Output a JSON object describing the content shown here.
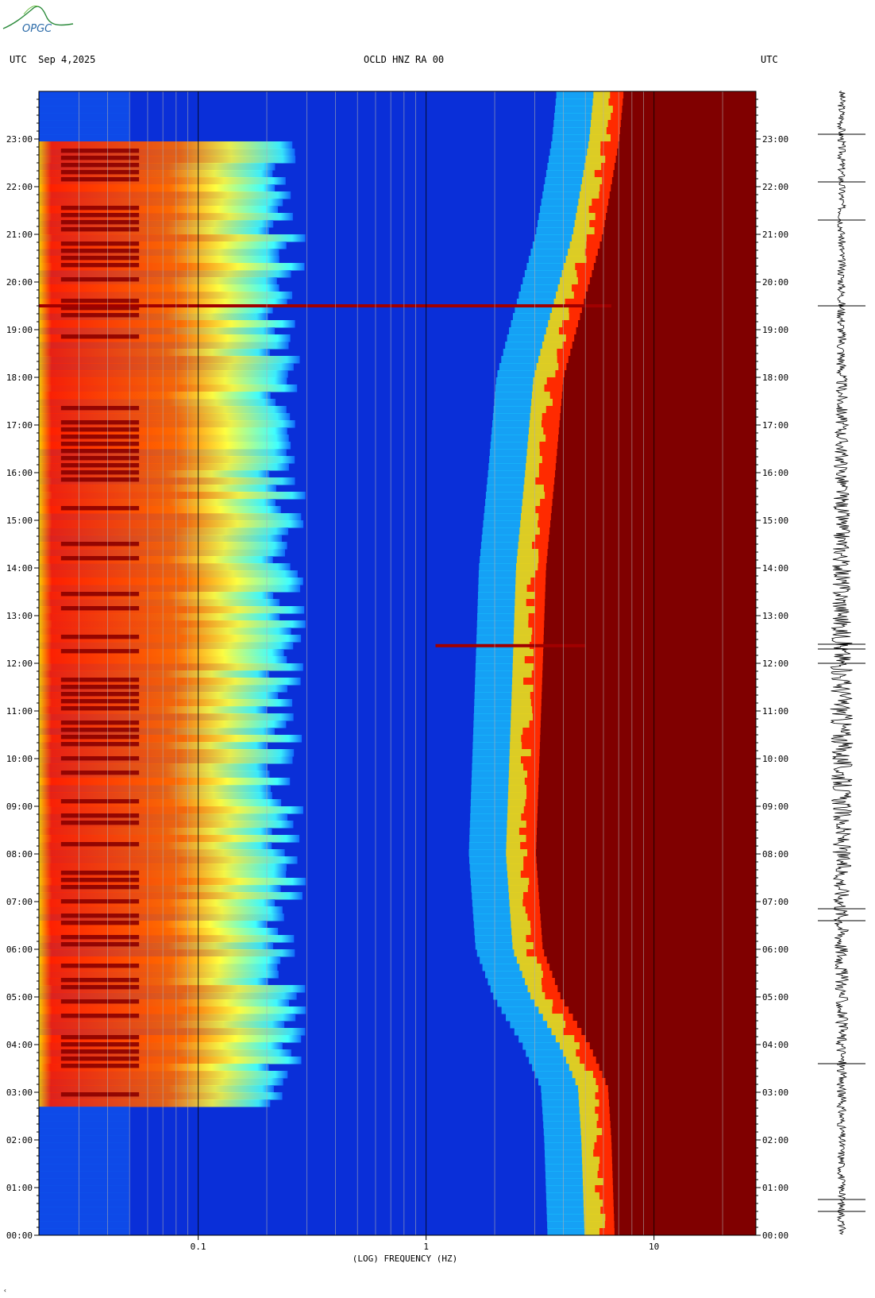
{
  "header": {
    "left": "UTC  Sep 4,2025",
    "center": "OCLD HNZ RA 00",
    "right": "UTC"
  },
  "logo": {
    "text": "OPGC",
    "color": "#2a8a3a"
  },
  "chart_data": {
    "type": "heatmap",
    "title": "OCLD HNZ RA 00",
    "xlabel": "(LOG) FREQUENCY (HZ)",
    "ylabel": "UTC",
    "x_scale": "log",
    "xlim_hz": [
      0.02,
      28
    ],
    "x_ticks": [
      {
        "value": 0.1,
        "label": "0.1"
      },
      {
        "value": 1,
        "label": "1"
      },
      {
        "value": 10,
        "label": "10"
      }
    ],
    "y_ticks": [
      "00:00",
      "01:00",
      "02:00",
      "03:00",
      "04:00",
      "05:00",
      "06:00",
      "07:00",
      "08:00",
      "09:00",
      "10:00",
      "11:00",
      "12:00",
      "13:00",
      "14:00",
      "15:00",
      "16:00",
      "17:00",
      "18:00",
      "19:00",
      "20:00",
      "21:00",
      "22:00",
      "23:00"
    ],
    "ylim_hours": [
      0,
      24
    ],
    "colormap": [
      "#00007f",
      "#0000ff",
      "#007fff",
      "#00ffff",
      "#7fff7f",
      "#ffff00",
      "#ff7f00",
      "#ff0000",
      "#7f0000"
    ],
    "noise_edge_hz_by_hour": [
      {
        "hour": 0,
        "edge": 6.2
      },
      {
        "hour": 2,
        "edge": 6.0
      },
      {
        "hour": 3.1,
        "edge": 5.8
      },
      {
        "hour": 4,
        "edge": 4.8
      },
      {
        "hour": 5,
        "edge": 3.6
      },
      {
        "hour": 6,
        "edge": 3.0
      },
      {
        "hour": 8,
        "edge": 2.8
      },
      {
        "hour": 10,
        "edge": 2.9
      },
      {
        "hour": 12,
        "edge": 3.0
      },
      {
        "hour": 14,
        "edge": 3.1
      },
      {
        "hour": 16,
        "edge": 3.4
      },
      {
        "hour": 18,
        "edge": 3.7
      },
      {
        "hour": 19.5,
        "edge": 4.5
      },
      {
        "hour": 21,
        "edge": 5.5
      },
      {
        "hour": 23,
        "edge": 6.5
      },
      {
        "hour": 24,
        "edge": 6.8
      }
    ],
    "microseism_band": {
      "hours": [
        2.75,
        23
      ],
      "fmin_hz": 0.02,
      "fmax_hz": 0.3
    },
    "events": [
      {
        "hour": 19.5,
        "label": "broadband event",
        "fmax_hz": 6.5
      },
      {
        "hour": 12.37,
        "label": "event",
        "fmin_hz": 1.1,
        "fmax_hz": 5.0
      }
    ],
    "seismogram_spikes_hours": [
      0.5,
      0.75,
      3.6,
      6.6,
      6.85,
      12.0,
      12.3,
      12.4,
      19.5,
      21.3,
      22.1,
      23.1
    ]
  }
}
